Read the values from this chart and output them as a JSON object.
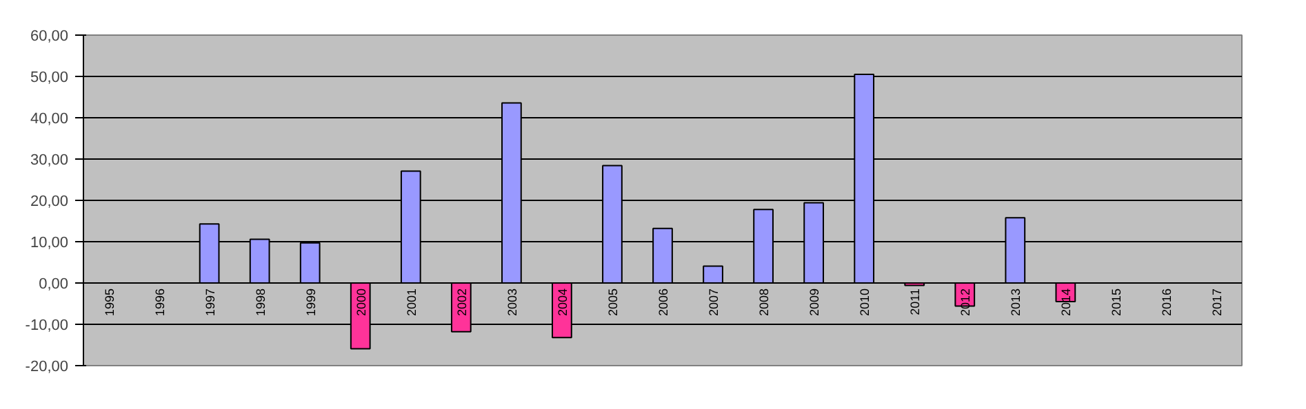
{
  "chart_data": {
    "type": "bar",
    "categories": [
      "1995",
      "1996",
      "1997",
      "1998",
      "1999",
      "2000",
      "2001",
      "2002",
      "2003",
      "2004",
      "2005",
      "2006",
      "2007",
      "2008",
      "2009",
      "2010",
      "2011",
      "2012",
      "2013",
      "2014",
      "2015",
      "2016",
      "2017"
    ],
    "values": [
      0,
      0,
      14.3,
      10.6,
      9.7,
      -15.9,
      27.1,
      -11.8,
      43.6,
      -13.2,
      28.4,
      13.2,
      4.1,
      17.8,
      19.4,
      50.5,
      -0.6,
      -5.6,
      15.8,
      -4.5,
      0,
      0,
      0
    ],
    "colors": [
      "#9999ff",
      "#9999ff",
      "#9999ff",
      "#9999ff",
      "#9999ff",
      "#ff3399",
      "#9999ff",
      "#ff3399",
      "#9999ff",
      "#ff3399",
      "#9999ff",
      "#9999ff",
      "#9999ff",
      "#9999ff",
      "#9999ff",
      "#9999ff",
      "#ff3399",
      "#ff3399",
      "#9999ff",
      "#ff3399",
      "#9999ff",
      "#9999ff",
      "#9999ff"
    ],
    "ylim": [
      -20,
      60
    ],
    "yticks": [
      {
        "value": -20,
        "label": "-20,00"
      },
      {
        "value": -10,
        "label": "-10,00"
      },
      {
        "value": 0,
        "label": "0,00"
      },
      {
        "value": 10,
        "label": "10,00"
      },
      {
        "value": 20,
        "label": "20,00"
      },
      {
        "value": 30,
        "label": "30,00"
      },
      {
        "value": 40,
        "label": "40,00"
      },
      {
        "value": 50,
        "label": "50,00"
      },
      {
        "value": 60,
        "label": "60,00"
      }
    ],
    "grid": "y"
  }
}
